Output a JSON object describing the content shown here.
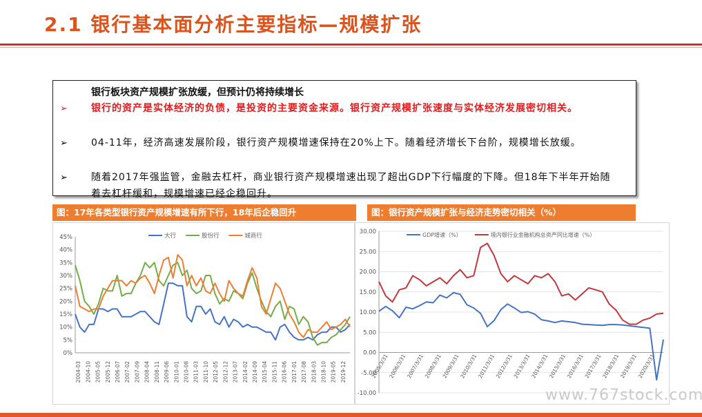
{
  "header": {
    "title": "2.1 银行基本面分析主要指标—规模扩张"
  },
  "summary": {
    "heading": "银行板块资产规模扩张放缓，但预计仍将持续增长",
    "bullets": [
      {
        "marker": "➢",
        "text": "银行的资产是实体经济的负债，是投资的主要资金来源。银行资产规模扩张速度与实体经济发展密切相关。"
      },
      {
        "marker": "➢",
        "text": "04-11年，经济高速发展阶段，银行资产规模增速保持在20%上下。随着经济增长下台阶，规模增长放缓。"
      },
      {
        "marker": "➢",
        "text": "随着2017年强监管，金融去杠杆，商业银行资产规模增速出现了超出GDP下行幅度的下降。但18年下半年开始随着去杠杆缓和，规模增速已经企稳回升。"
      }
    ]
  },
  "captions": {
    "left": "图：17年各类型银行资产规模增速有所下行，18年后企稳回升",
    "right": "图：银行资产规模扩张与经济走势密切相关（%）"
  },
  "watermark": "www.767stock.com",
  "chart_data": [
    {
      "type": "line",
      "y_ticks": [
        "45%",
        "40%",
        "35%",
        "30%",
        "25%",
        "20%",
        "15%",
        "10%",
        "5%",
        "0%"
      ],
      "ylim": [
        0,
        45
      ],
      "x_tick_labels": [
        "2004-03",
        "2004-10",
        "2005-05",
        "2005-12",
        "2006-07",
        "2007-02",
        "2007-09",
        "2008-04",
        "2008-11",
        "2009-06",
        "2010-01",
        "2010-08",
        "2011-03",
        "2011-10",
        "2012-05",
        "2012-12",
        "2013-07",
        "2014-02",
        "2014-09",
        "2015-04",
        "2015-11",
        "2016-06",
        "2017-01",
        "2017-08",
        "2018-03",
        "2018-10",
        "2019-05",
        "2019-12"
      ],
      "legend_position": "top",
      "series": [
        {
          "name": "大行",
          "color": "#4472c4",
          "values": [
            15,
            10,
            8,
            11,
            11,
            17,
            17,
            16,
            17,
            17,
            14,
            14,
            14,
            15,
            16,
            16,
            14,
            12,
            11,
            19,
            27,
            27,
            26,
            26,
            14,
            12,
            18,
            18,
            15,
            17,
            12,
            11,
            14,
            10,
            13,
            12,
            10,
            11,
            10,
            10,
            9,
            8,
            8,
            5,
            10,
            11,
            8,
            6,
            5,
            5,
            6,
            5,
            7,
            8,
            8,
            10,
            10,
            8,
            9,
            11
          ]
        },
        {
          "name": "股份行",
          "color": "#70ad47",
          "values": [
            34,
            28,
            20,
            18,
            15,
            19,
            25,
            24,
            24,
            30,
            22,
            23,
            23,
            27,
            30,
            35,
            33,
            35,
            28,
            26,
            30,
            34,
            35,
            30,
            32,
            25,
            23,
            24,
            30,
            30,
            23,
            19,
            21,
            20,
            24,
            23,
            21,
            27,
            31,
            25,
            20,
            16,
            14,
            18,
            20,
            13,
            18,
            17,
            11,
            14,
            12,
            6,
            3,
            4,
            4,
            6,
            7,
            9,
            11,
            14
          ]
        },
        {
          "name": "城商行",
          "color": "#ed7d31",
          "values": [
            26,
            18,
            17,
            16,
            17,
            17,
            22,
            25,
            28,
            28,
            28,
            26,
            28,
            27,
            29,
            30,
            27,
            23,
            30,
            36,
            37,
            29,
            38,
            36,
            26,
            30,
            26,
            29,
            24,
            23,
            27,
            23,
            20,
            28,
            25,
            23,
            22,
            28,
            33,
            29,
            18,
            15,
            21,
            27,
            25,
            20,
            15,
            12,
            8,
            6,
            9,
            8,
            8,
            10,
            12,
            9,
            10,
            11,
            13,
            10
          ]
        }
      ]
    },
    {
      "type": "line",
      "y_ticks": [
        "30.00",
        "25.00",
        "20.00",
        "15.00",
        "10.00",
        "5.00",
        "0.00",
        "-5.00",
        "-10.00"
      ],
      "ylim": [
        -10,
        30
      ],
      "x_tick_labels": [
        "2005/3/31",
        "2006/3/31",
        "2007/3/31",
        "2008/3/31",
        "2009/3/31",
        "2010/3/31",
        "2011/3/31",
        "2012/3/31",
        "2013/3/31",
        "2014/3/31",
        "2015/3/31",
        "2016/3/31",
        "2017/3/31",
        "2018/3/31",
        "2019/3/31",
        "2020/3/31"
      ],
      "legend_position": "top",
      "series": [
        {
          "name": "GDP增速（%）",
          "color": "#4472c4",
          "values": [
            10.2,
            11.4,
            10.3,
            8.6,
            11.2,
            10.8,
            11.6,
            12.5,
            12.3,
            14.2,
            13.5,
            14.8,
            14.4,
            11.8,
            11.0,
            9.7,
            6.4,
            7.9,
            10.6,
            12.0,
            11.0,
            9.9,
            10.1,
            9.5,
            8.1,
            7.8,
            7.4,
            7.8,
            7.6,
            7.4,
            7.0,
            6.9,
            6.8,
            6.7,
            6.9,
            6.9,
            6.8,
            6.6,
            6.4,
            6.2,
            6.0,
            -6.8,
            3.2
          ]
        },
        {
          "name": "境内银行业金融机构总资产同比增速（%）",
          "color": "#c0373c",
          "values": [
            17.5,
            14.0,
            12.5,
            15.5,
            16.0,
            19.0,
            18.0,
            16.5,
            17.5,
            18.5,
            17.0,
            19.0,
            20.5,
            18.5,
            19.0,
            26.0,
            27.0,
            24.0,
            19.5,
            17.5,
            19.0,
            18.0,
            17.0,
            19.0,
            18.5,
            19.5,
            17.5,
            14.0,
            14.5,
            13.0,
            14.5,
            16.0,
            15.5,
            15.0,
            12.0,
            10.5,
            8.0,
            7.0,
            7.0,
            8.0,
            8.5,
            9.5,
            9.7
          ]
        }
      ]
    }
  ]
}
